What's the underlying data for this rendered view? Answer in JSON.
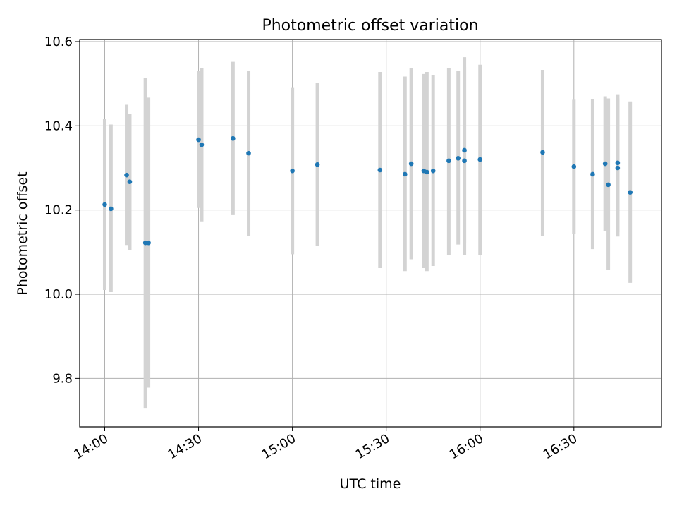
{
  "chart_data": {
    "type": "scatter",
    "title": "Photometric offset variation",
    "xlabel": "UTC time",
    "ylabel": "Photometric offset",
    "xlim": [
      "13:52",
      "16:58"
    ],
    "ylim": [
      9.685,
      10.605
    ],
    "x_ticks": [
      "14:00",
      "14:30",
      "15:00",
      "15:30",
      "16:00",
      "16:30"
    ],
    "y_ticks": [
      "9.8",
      "10.0",
      "10.2",
      "10.4",
      "10.6"
    ],
    "grid": true,
    "marker_color": "#1f77b4",
    "errorbar_color": "#d3d3d3",
    "points": [
      {
        "t": "14:00",
        "y": 10.213,
        "lo": 10.01,
        "hi": 10.417
      },
      {
        "t": "14:02",
        "y": 10.203,
        "lo": 10.005,
        "hi": 10.403
      },
      {
        "t": "14:07",
        "y": 10.283,
        "lo": 10.117,
        "hi": 10.45
      },
      {
        "t": "14:08",
        "y": 10.267,
        "lo": 10.105,
        "hi": 10.428
      },
      {
        "t": "14:13",
        "y": 10.122,
        "lo": 9.73,
        "hi": 10.513
      },
      {
        "t": "14:14",
        "y": 10.122,
        "lo": 9.778,
        "hi": 10.467
      },
      {
        "t": "14:30",
        "y": 10.367,
        "lo": 10.205,
        "hi": 10.53
      },
      {
        "t": "14:31",
        "y": 10.355,
        "lo": 10.173,
        "hi": 10.537
      },
      {
        "t": "14:41",
        "y": 10.37,
        "lo": 10.188,
        "hi": 10.552
      },
      {
        "t": "14:46",
        "y": 10.335,
        "lo": 10.138,
        "hi": 10.53
      },
      {
        "t": "15:00",
        "y": 10.293,
        "lo": 10.095,
        "hi": 10.49
      },
      {
        "t": "15:08",
        "y": 10.308,
        "lo": 10.115,
        "hi": 10.502
      },
      {
        "t": "15:28",
        "y": 10.295,
        "lo": 10.062,
        "hi": 10.528
      },
      {
        "t": "15:36",
        "y": 10.285,
        "lo": 10.055,
        "hi": 10.517
      },
      {
        "t": "15:38",
        "y": 10.31,
        "lo": 10.083,
        "hi": 10.538
      },
      {
        "t": "15:42",
        "y": 10.293,
        "lo": 10.062,
        "hi": 10.523
      },
      {
        "t": "15:43",
        "y": 10.29,
        "lo": 10.055,
        "hi": 10.528
      },
      {
        "t": "15:45",
        "y": 10.293,
        "lo": 10.067,
        "hi": 10.52
      },
      {
        "t": "15:50",
        "y": 10.317,
        "lo": 10.093,
        "hi": 10.538
      },
      {
        "t": "15:53",
        "y": 10.323,
        "lo": 10.118,
        "hi": 10.53
      },
      {
        "t": "15:55",
        "y": 10.342,
        "lo": 10.12,
        "hi": 10.563
      },
      {
        "t": "15:55",
        "y": 10.317,
        "lo": 10.093,
        "hi": 10.54
      },
      {
        "t": "16:00",
        "y": 10.32,
        "lo": 10.093,
        "hi": 10.545
      },
      {
        "t": "16:20",
        "y": 10.337,
        "lo": 10.138,
        "hi": 10.533
      },
      {
        "t": "16:30",
        "y": 10.303,
        "lo": 10.143,
        "hi": 10.462
      },
      {
        "t": "16:36",
        "y": 10.285,
        "lo": 10.107,
        "hi": 10.463
      },
      {
        "t": "16:40",
        "y": 10.31,
        "lo": 10.15,
        "hi": 10.47
      },
      {
        "t": "16:41",
        "y": 10.26,
        "lo": 10.057,
        "hi": 10.465
      },
      {
        "t": "16:44",
        "y": 10.3,
        "lo": 10.137,
        "hi": 10.465
      },
      {
        "t": "16:44",
        "y": 10.312,
        "lo": 10.148,
        "hi": 10.475
      },
      {
        "t": "16:48",
        "y": 10.242,
        "lo": 10.027,
        "hi": 10.458
      }
    ]
  }
}
